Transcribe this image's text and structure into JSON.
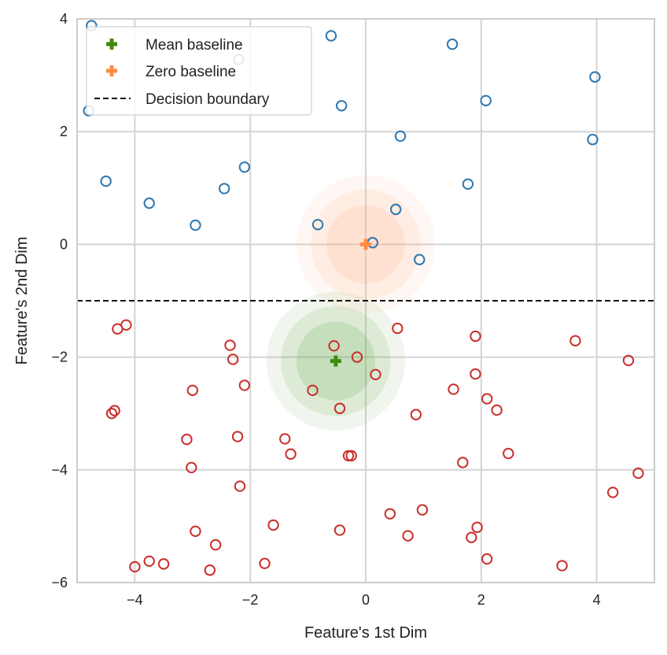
{
  "chart_data": {
    "type": "scatter",
    "title": "",
    "xlabel": "Feature's 1st Dim",
    "ylabel": "Feature's 2nd Dim",
    "xlim": [
      -5,
      5
    ],
    "ylim": [
      -6,
      4
    ],
    "xticks": [
      -4,
      -2,
      0,
      2,
      4
    ],
    "yticks": [
      -6,
      -4,
      -2,
      0,
      2,
      4
    ],
    "xtick_labels": [
      "−4",
      "−2",
      "0",
      "2",
      "4"
    ],
    "ytick_labels": [
      "−6",
      "−4",
      "−2",
      "0",
      "2",
      "4"
    ],
    "grid": true,
    "legend_position": "top-left",
    "decision_boundary": {
      "label": "Decision boundary",
      "y": -1,
      "color": "#111111",
      "style": "dashed"
    },
    "baselines": [
      {
        "label": "Mean baseline",
        "x": -0.52,
        "y": -2.07,
        "color": "#3f8a0f",
        "halo_color": "#6aa84f"
      },
      {
        "label": "Zero baseline",
        "x": 0.0,
        "y": 0.0,
        "color": "#ff8c42",
        "halo_color": "#ffb48a"
      }
    ],
    "series": [
      {
        "color": "#2e78b0",
        "points": [
          [
            -4.75,
            3.88
          ],
          [
            -4.8,
            2.37
          ],
          [
            -4.5,
            1.12
          ],
          [
            -3.75,
            0.73
          ],
          [
            -2.95,
            0.34
          ],
          [
            -2.45,
            0.99
          ],
          [
            -2.1,
            1.37
          ],
          [
            -2.2,
            3.28
          ],
          [
            -0.6,
            3.7
          ],
          [
            -0.42,
            2.46
          ],
          [
            -0.83,
            0.35
          ],
          [
            0.12,
            0.03
          ],
          [
            0.52,
            0.62
          ],
          [
            0.6,
            1.92
          ],
          [
            0.93,
            -0.27
          ],
          [
            1.5,
            3.55
          ],
          [
            1.77,
            1.07
          ],
          [
            2.08,
            2.55
          ],
          [
            3.93,
            1.86
          ],
          [
            3.97,
            2.97
          ]
        ]
      },
      {
        "color": "#c9302c",
        "points": [
          [
            -4.3,
            -1.5
          ],
          [
            -4.15,
            -1.43
          ],
          [
            -4.4,
            -3.0
          ],
          [
            -4.35,
            -2.95
          ],
          [
            -3.75,
            -5.62
          ],
          [
            -4.0,
            -5.72
          ],
          [
            -3.5,
            -5.67
          ],
          [
            -3.1,
            -3.46
          ],
          [
            -3.0,
            -2.59
          ],
          [
            -3.02,
            -3.96
          ],
          [
            -2.95,
            -5.09
          ],
          [
            -2.6,
            -5.33
          ],
          [
            -2.7,
            -5.78
          ],
          [
            -2.35,
            -1.79
          ],
          [
            -2.3,
            -2.04
          ],
          [
            -2.1,
            -2.5
          ],
          [
            -2.22,
            -3.41
          ],
          [
            -2.18,
            -4.29
          ],
          [
            -1.75,
            -5.66
          ],
          [
            -1.6,
            -4.98
          ],
          [
            -1.4,
            -3.45
          ],
          [
            -1.3,
            -3.72
          ],
          [
            -0.92,
            -2.59
          ],
          [
            -0.55,
            -1.8
          ],
          [
            -0.15,
            -2.0
          ],
          [
            -0.45,
            -2.91
          ],
          [
            -0.3,
            -3.75
          ],
          [
            -0.25,
            -3.75
          ],
          [
            -0.45,
            -5.07
          ],
          [
            0.17,
            -2.31
          ],
          [
            0.55,
            -1.49
          ],
          [
            0.87,
            -3.02
          ],
          [
            0.42,
            -4.78
          ],
          [
            0.73,
            -5.17
          ],
          [
            0.98,
            -4.71
          ],
          [
            1.52,
            -2.57
          ],
          [
            1.68,
            -3.87
          ],
          [
            1.9,
            -1.63
          ],
          [
            1.9,
            -2.3
          ],
          [
            1.83,
            -5.2
          ],
          [
            1.93,
            -5.02
          ],
          [
            2.1,
            -2.74
          ],
          [
            2.27,
            -2.94
          ],
          [
            2.47,
            -3.71
          ],
          [
            2.1,
            -5.58
          ],
          [
            3.4,
            -5.7
          ],
          [
            3.63,
            -1.71
          ],
          [
            4.28,
            -4.4
          ],
          [
            4.55,
            -2.06
          ],
          [
            4.72,
            -4.06
          ]
        ]
      }
    ]
  }
}
